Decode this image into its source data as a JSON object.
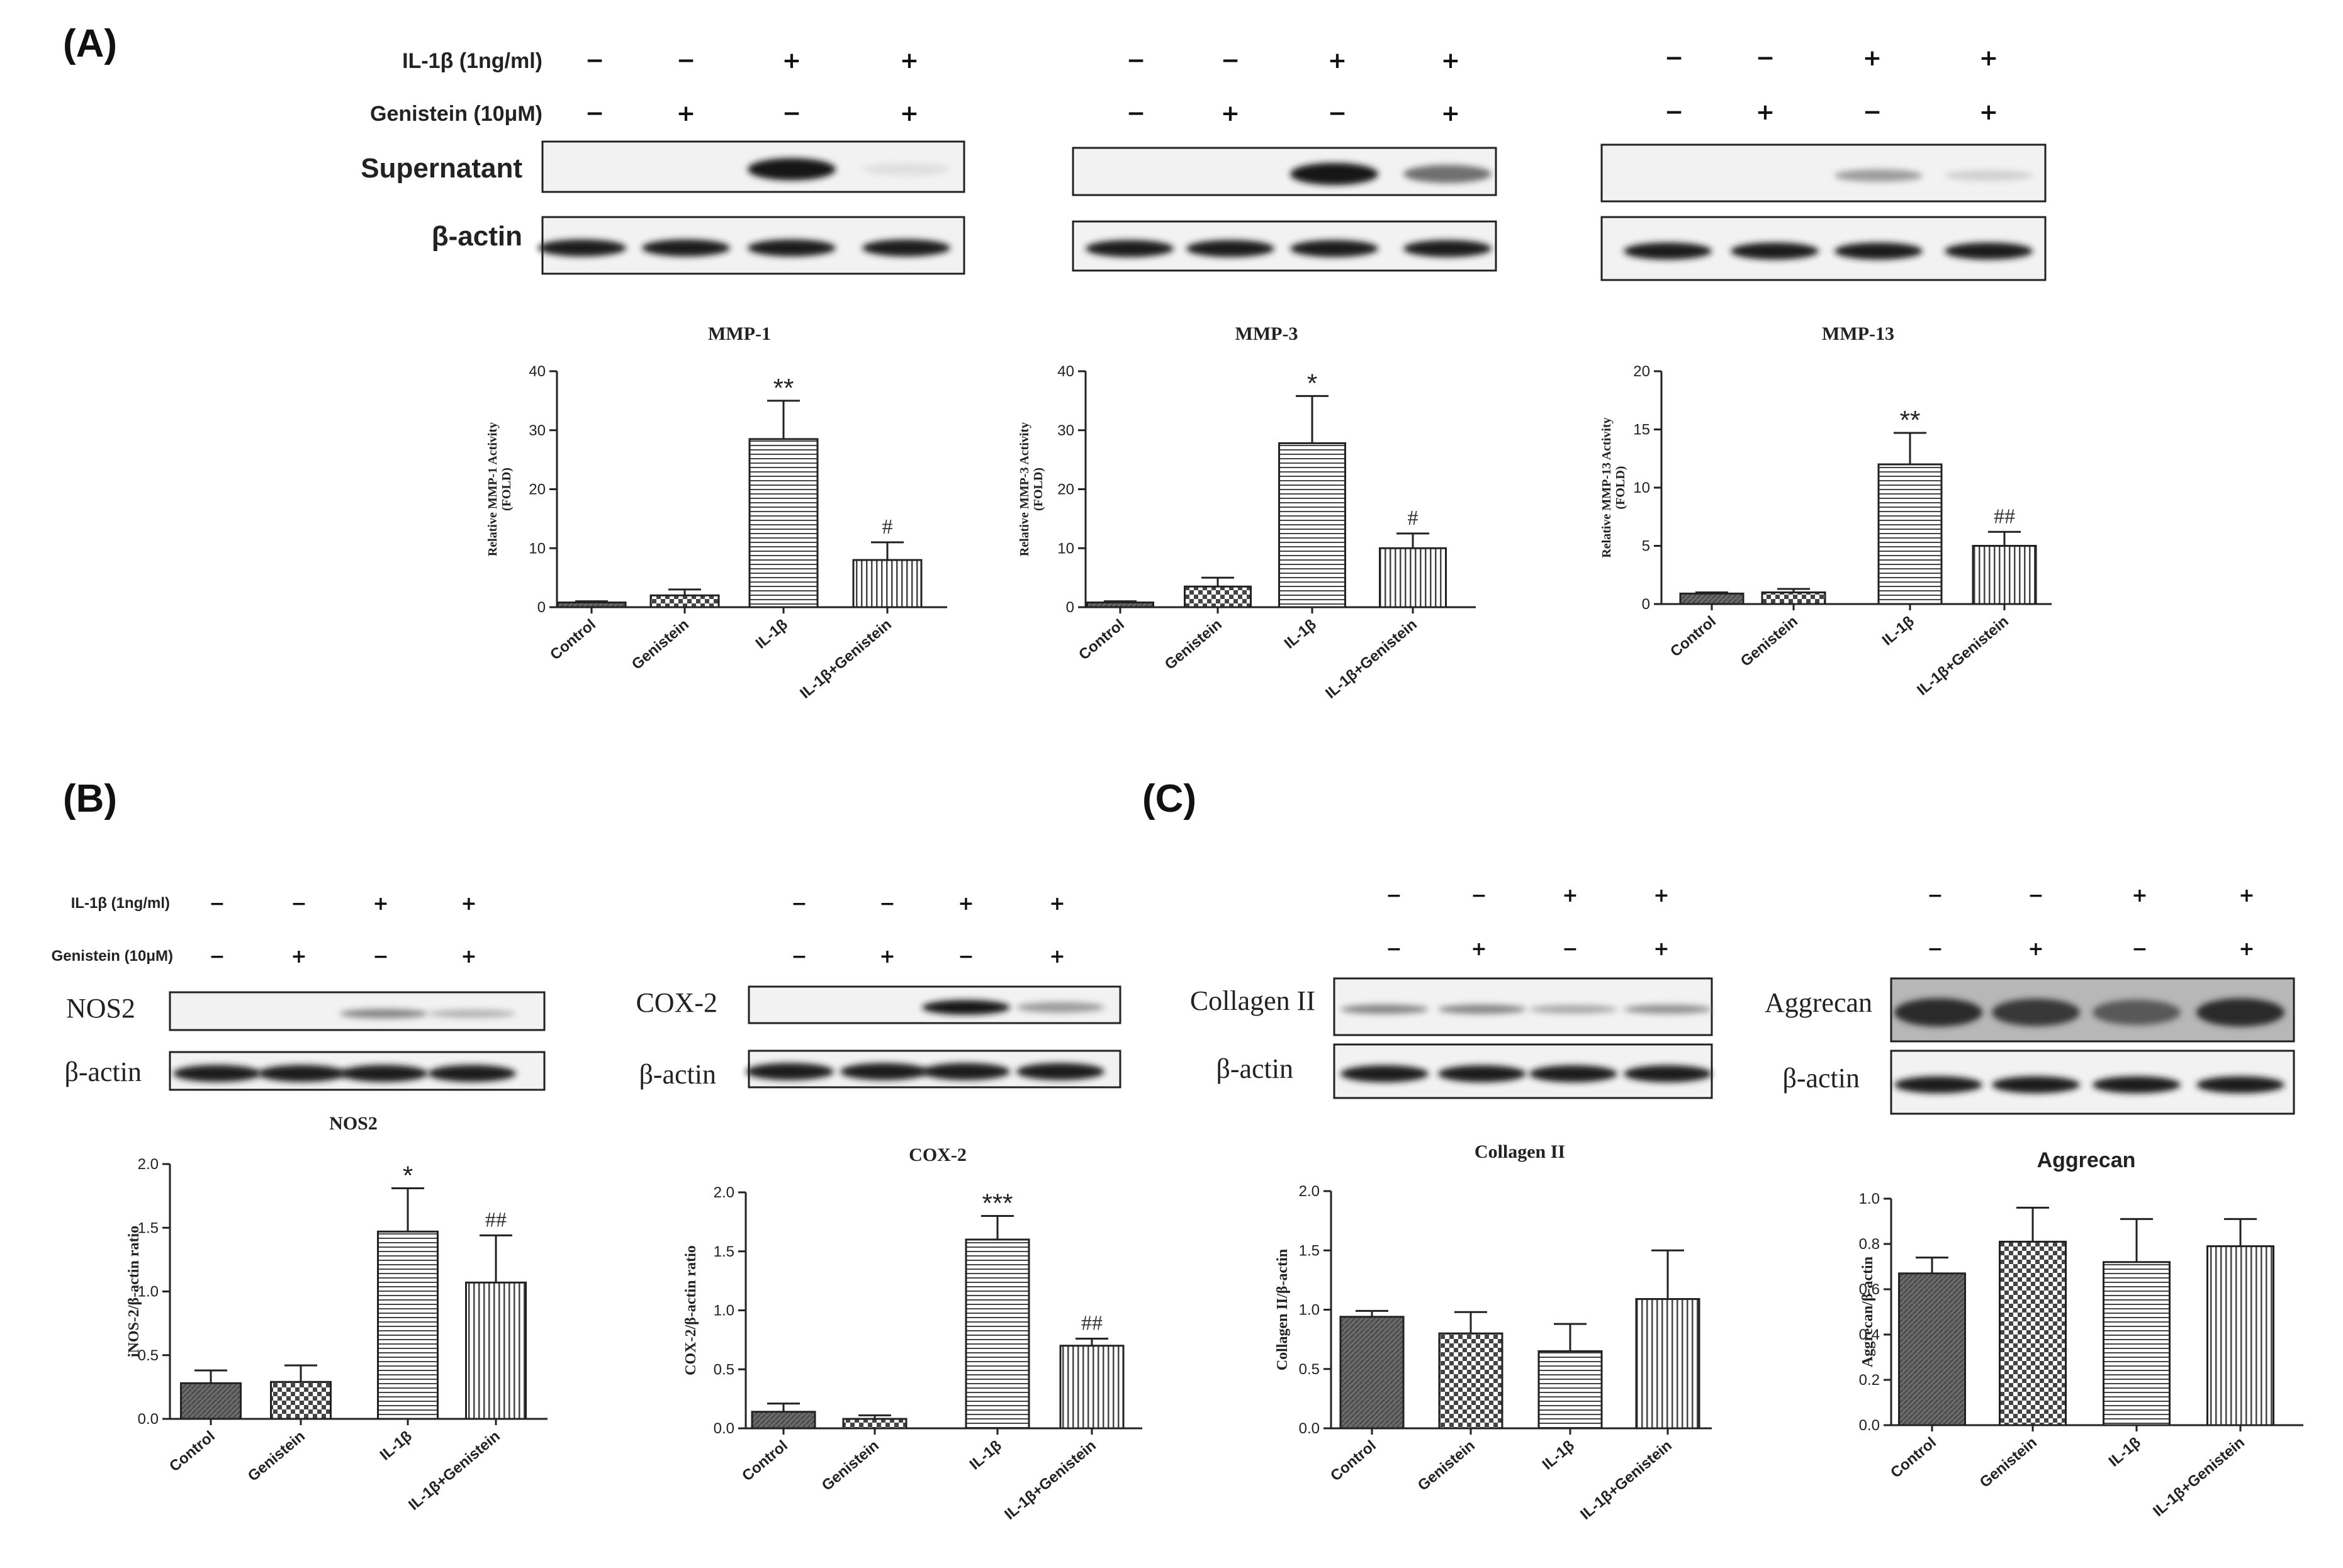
{
  "panels": {
    "A": "(A)",
    "B": "(B)",
    "C": "(C)"
  },
  "treatments": {
    "il1b": "IL-1β (1ng/ml)",
    "genistein": "Genistein (10μM)"
  },
  "signs": {
    "il1b": [
      "−",
      "−",
      "+",
      "+"
    ],
    "genistein": [
      "−",
      "+",
      "−",
      "+"
    ]
  },
  "blot_labels": {
    "supernatant": "Supernatant",
    "bactin": "β-actin",
    "nos2": "NOS2",
    "cox2": "COX-2",
    "collagen": "Collagen II",
    "aggrecan": "Aggrecan"
  },
  "blots": [
    {
      "id": "mmp1",
      "band_intensity": [
        0.02,
        0.02,
        0.95,
        0.05
      ]
    },
    {
      "id": "mmp3",
      "band_intensity": [
        0.02,
        0.02,
        0.95,
        0.55
      ]
    },
    {
      "id": "mmp13",
      "band_intensity": [
        0.02,
        0.02,
        0.35,
        0.12
      ]
    },
    {
      "id": "nos2",
      "band_intensity": [
        0.02,
        0.02,
        0.45,
        0.25
      ]
    },
    {
      "id": "cox2",
      "band_intensity": [
        0.02,
        0.02,
        0.95,
        0.35
      ]
    },
    {
      "id": "collagen",
      "band_intensity": [
        0.45,
        0.45,
        0.3,
        0.4
      ]
    },
    {
      "id": "aggrecan",
      "band_intensity": [
        0.85,
        0.8,
        0.65,
        0.85
      ]
    }
  ],
  "chart_data": [
    {
      "id": "mmp1",
      "type": "bar",
      "title": "MMP-1",
      "ylabel": [
        "Relative MMP-1 Activity",
        "(FOLD)"
      ],
      "categories": [
        "Control",
        "Genistein",
        "IL-1β",
        "IL-1β+Genistein"
      ],
      "values": [
        0.8,
        2.0,
        28.5,
        8.0
      ],
      "errors": [
        0.2,
        1.0,
        6.5,
        3.0
      ],
      "ylim": [
        0,
        40
      ],
      "yticks": [
        "0",
        "10",
        "20",
        "30",
        "40"
      ],
      "annotations": [
        "",
        "",
        "**",
        "#"
      ]
    },
    {
      "id": "mmp3",
      "type": "bar",
      "title": "MMP-3",
      "ylabel": [
        "Relative MMP-3 Activity",
        "(FOLD)"
      ],
      "categories": [
        "Control",
        "Genistein",
        "IL-1β",
        "IL-1β+Genistein"
      ],
      "values": [
        0.8,
        3.5,
        27.8,
        10.0
      ],
      "errors": [
        0.2,
        1.5,
        8.0,
        2.5
      ],
      "ylim": [
        0,
        40
      ],
      "yticks": [
        "0",
        "10",
        "20",
        "30",
        "40"
      ],
      "annotations": [
        "",
        "",
        "*",
        "#"
      ]
    },
    {
      "id": "mmp13",
      "type": "bar",
      "title": "MMP-13",
      "ylabel": [
        "Relative MMP-13 Activity",
        "(FOLD)"
      ],
      "categories": [
        "Control",
        "Genistein",
        "IL-1β",
        "IL-1β+Genistein"
      ],
      "values": [
        0.9,
        1.0,
        12.0,
        5.0
      ],
      "errors": [
        0.1,
        0.3,
        2.7,
        1.2
      ],
      "ylim": [
        0,
        20
      ],
      "yticks": [
        "0",
        "5",
        "10",
        "15",
        "20"
      ],
      "annotations": [
        "",
        "",
        "**",
        "##"
      ]
    },
    {
      "id": "nos2",
      "type": "bar",
      "title": "NOS2",
      "ylabel": [
        "iNOS-2/β-actin ratio"
      ],
      "categories": [
        "Control",
        "Genistein",
        "IL-1β",
        "IL-1β+Genistein"
      ],
      "values": [
        0.28,
        0.29,
        1.47,
        1.07
      ],
      "errors": [
        0.1,
        0.13,
        0.34,
        0.37
      ],
      "ylim": [
        0,
        2.0
      ],
      "yticks": [
        "0.0",
        "0.5",
        "1.0",
        "1.5",
        "2.0"
      ],
      "annotations": [
        "",
        "",
        "*",
        "##"
      ]
    },
    {
      "id": "cox2",
      "type": "bar",
      "title": "COX-2",
      "ylabel": [
        "COX-2/β-actin ratio"
      ],
      "categories": [
        "Control",
        "Genistein",
        "IL-1β",
        "IL-1β+Genistein"
      ],
      "values": [
        0.14,
        0.08,
        1.6,
        0.7
      ],
      "errors": [
        0.07,
        0.03,
        0.2,
        0.06
      ],
      "ylim": [
        0,
        2.0
      ],
      "yticks": [
        "0.0",
        "0.5",
        "1.0",
        "1.5",
        "2.0"
      ],
      "annotations": [
        "",
        "",
        "***",
        "##"
      ]
    },
    {
      "id": "collagen",
      "type": "bar",
      "title": "Collagen II",
      "ylabel": [
        "Collagen II/β-actin"
      ],
      "categories": [
        "Control",
        "Genistein",
        "IL-1β",
        "IL-1β+Genistein"
      ],
      "values": [
        0.94,
        0.8,
        0.65,
        1.09
      ],
      "errors": [
        0.05,
        0.18,
        0.23,
        0.41
      ],
      "ylim": [
        0,
        2.0
      ],
      "yticks": [
        "0.0",
        "0.5",
        "1.0",
        "1.5",
        "2.0"
      ],
      "annotations": [
        "",
        "",
        "",
        ""
      ]
    },
    {
      "id": "aggrecan",
      "type": "bar",
      "title": "Aggrecan",
      "ylabel": [
        "Aggrecan/β-actin"
      ],
      "categories": [
        "Control",
        "Genistein",
        "IL-1β",
        "IL-1β+Genistein"
      ],
      "values": [
        0.67,
        0.81,
        0.72,
        0.79
      ],
      "errors": [
        0.07,
        0.15,
        0.19,
        0.12
      ],
      "ylim": [
        0,
        1.0
      ],
      "yticks": [
        "0.0",
        "0.2",
        "0.4",
        "0.6",
        "0.8",
        "1.0"
      ],
      "annotations": [
        "",
        "",
        "",
        ""
      ]
    }
  ]
}
